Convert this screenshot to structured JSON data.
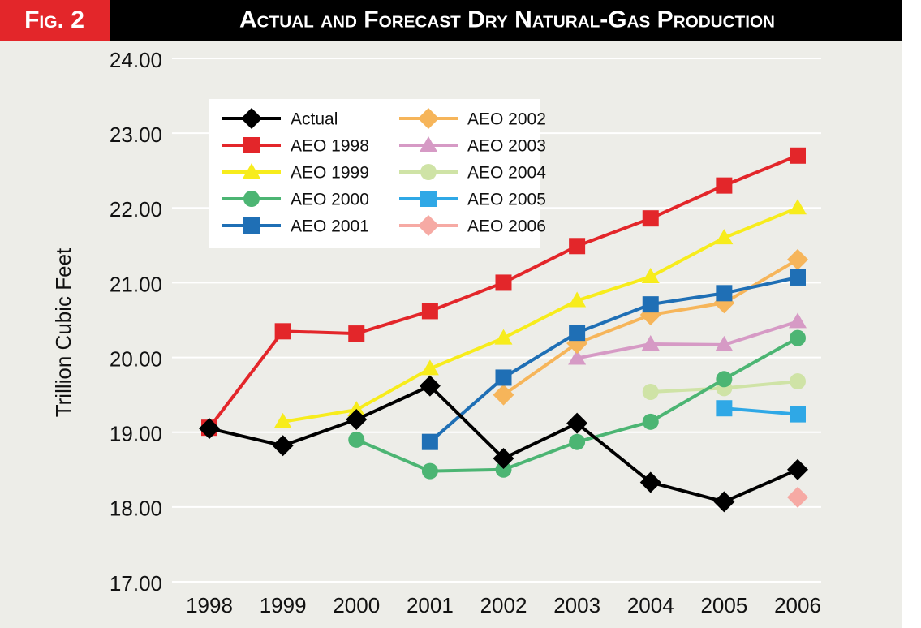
{
  "chart_data": {
    "type": "line",
    "figure_label": "Fig. 2",
    "title": "Actual and Forecast Dry Natural-Gas Production",
    "y_label": "Trillion Cubic Feet",
    "categories": [
      "1998",
      "1999",
      "2000",
      "2001",
      "2002",
      "2003",
      "2004",
      "2005",
      "2006"
    ],
    "ylim": [
      17,
      24
    ],
    "yticks": [
      {
        "value": 17,
        "label": "17.00"
      },
      {
        "value": 18,
        "label": "18.00"
      },
      {
        "value": 19,
        "label": "19.00"
      },
      {
        "value": 20,
        "label": "20.00"
      },
      {
        "value": 21,
        "label": "21.00"
      },
      {
        "value": 22,
        "label": "22.00"
      },
      {
        "value": 23,
        "label": "23.00"
      },
      {
        "value": 24,
        "label": "24.00"
      }
    ],
    "grid": true,
    "legend": "upper-left",
    "series": [
      {
        "name": "Actual",
        "color": "#000000",
        "marker": "diamond",
        "values": [
          19.05,
          18.82,
          19.17,
          19.62,
          18.65,
          19.12,
          18.33,
          18.07,
          18.5
        ]
      },
      {
        "name": "AEO 1998",
        "color": "#e3262a",
        "marker": "square",
        "values": [
          19.06,
          20.35,
          20.32,
          20.62,
          21.0,
          21.49,
          21.86,
          22.3,
          22.7
        ]
      },
      {
        "name": "AEO 1999",
        "color": "#f7ec1c",
        "marker": "triangle",
        "values": [
          null,
          19.14,
          19.3,
          19.85,
          20.26,
          20.76,
          21.08,
          21.6,
          22.0
        ]
      },
      {
        "name": "AEO 2000",
        "color": "#4cb573",
        "marker": "circle",
        "values": [
          null,
          null,
          18.9,
          18.48,
          18.5,
          18.87,
          19.14,
          19.71,
          20.26
        ]
      },
      {
        "name": "AEO 2001",
        "color": "#1f6fb5",
        "marker": "square",
        "values": [
          null,
          null,
          null,
          18.87,
          19.73,
          20.33,
          20.71,
          20.86,
          21.07
        ]
      },
      {
        "name": "AEO 2002",
        "color": "#f6b55a",
        "marker": "diamond",
        "values": [
          null,
          null,
          null,
          null,
          19.5,
          20.19,
          20.57,
          20.73,
          21.31
        ]
      },
      {
        "name": "AEO 2003",
        "color": "#d69ac5",
        "marker": "triangle",
        "values": [
          null,
          null,
          null,
          null,
          null,
          19.99,
          20.18,
          20.17,
          20.48
        ]
      },
      {
        "name": "AEO 2004",
        "color": "#cfe3a6",
        "marker": "circle",
        "values": [
          null,
          null,
          null,
          null,
          null,
          null,
          19.54,
          19.59,
          19.68
        ]
      },
      {
        "name": "AEO 2005",
        "color": "#2fa8e6",
        "marker": "square",
        "values": [
          null,
          null,
          null,
          null,
          null,
          null,
          null,
          19.32,
          19.24
        ]
      },
      {
        "name": "AEO 2006",
        "color": "#f6aaa4",
        "marker": "diamond",
        "values": [
          null,
          null,
          null,
          null,
          null,
          null,
          null,
          null,
          18.13
        ]
      }
    ]
  }
}
